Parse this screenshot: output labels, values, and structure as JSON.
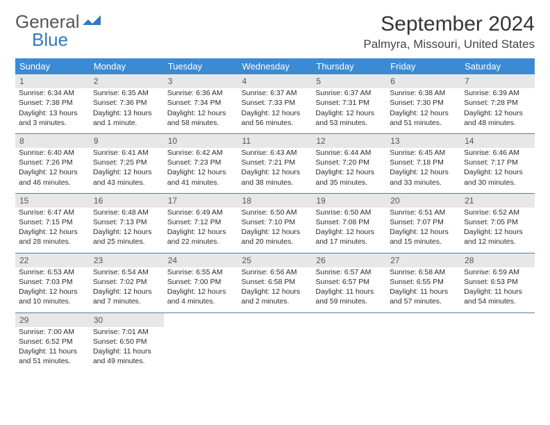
{
  "logo": {
    "text_general": "General",
    "text_blue": "Blue"
  },
  "title": "September 2024",
  "location": "Palmyra, Missouri, United States",
  "colors": {
    "header_bg": "#3b8bd4",
    "header_text": "#ffffff",
    "daynum_bg": "#e7e7e7",
    "daynum_text": "#555555",
    "cell_text": "#2a2a2a",
    "divider": "#5b7a99",
    "logo_gray": "#555555",
    "logo_blue": "#2f79c2",
    "page_bg": "#ffffff"
  },
  "typography": {
    "title_fontsize": 30,
    "location_fontsize": 17,
    "header_fontsize": 13,
    "daynum_fontsize": 12,
    "cell_fontsize": 10.5,
    "logo_fontsize": 26
  },
  "day_headers": [
    "Sunday",
    "Monday",
    "Tuesday",
    "Wednesday",
    "Thursday",
    "Friday",
    "Saturday"
  ],
  "weeks": [
    [
      {
        "n": "1",
        "sr": "Sunrise: 6:34 AM",
        "ss": "Sunset: 7:38 PM",
        "dl": "Daylight: 13 hours and 3 minutes."
      },
      {
        "n": "2",
        "sr": "Sunrise: 6:35 AM",
        "ss": "Sunset: 7:36 PM",
        "dl": "Daylight: 13 hours and 1 minute."
      },
      {
        "n": "3",
        "sr": "Sunrise: 6:36 AM",
        "ss": "Sunset: 7:34 PM",
        "dl": "Daylight: 12 hours and 58 minutes."
      },
      {
        "n": "4",
        "sr": "Sunrise: 6:37 AM",
        "ss": "Sunset: 7:33 PM",
        "dl": "Daylight: 12 hours and 56 minutes."
      },
      {
        "n": "5",
        "sr": "Sunrise: 6:37 AM",
        "ss": "Sunset: 7:31 PM",
        "dl": "Daylight: 12 hours and 53 minutes."
      },
      {
        "n": "6",
        "sr": "Sunrise: 6:38 AM",
        "ss": "Sunset: 7:30 PM",
        "dl": "Daylight: 12 hours and 51 minutes."
      },
      {
        "n": "7",
        "sr": "Sunrise: 6:39 AM",
        "ss": "Sunset: 7:28 PM",
        "dl": "Daylight: 12 hours and 48 minutes."
      }
    ],
    [
      {
        "n": "8",
        "sr": "Sunrise: 6:40 AM",
        "ss": "Sunset: 7:26 PM",
        "dl": "Daylight: 12 hours and 46 minutes."
      },
      {
        "n": "9",
        "sr": "Sunrise: 6:41 AM",
        "ss": "Sunset: 7:25 PM",
        "dl": "Daylight: 12 hours and 43 minutes."
      },
      {
        "n": "10",
        "sr": "Sunrise: 6:42 AM",
        "ss": "Sunset: 7:23 PM",
        "dl": "Daylight: 12 hours and 41 minutes."
      },
      {
        "n": "11",
        "sr": "Sunrise: 6:43 AM",
        "ss": "Sunset: 7:21 PM",
        "dl": "Daylight: 12 hours and 38 minutes."
      },
      {
        "n": "12",
        "sr": "Sunrise: 6:44 AM",
        "ss": "Sunset: 7:20 PM",
        "dl": "Daylight: 12 hours and 35 minutes."
      },
      {
        "n": "13",
        "sr": "Sunrise: 6:45 AM",
        "ss": "Sunset: 7:18 PM",
        "dl": "Daylight: 12 hours and 33 minutes."
      },
      {
        "n": "14",
        "sr": "Sunrise: 6:46 AM",
        "ss": "Sunset: 7:17 PM",
        "dl": "Daylight: 12 hours and 30 minutes."
      }
    ],
    [
      {
        "n": "15",
        "sr": "Sunrise: 6:47 AM",
        "ss": "Sunset: 7:15 PM",
        "dl": "Daylight: 12 hours and 28 minutes."
      },
      {
        "n": "16",
        "sr": "Sunrise: 6:48 AM",
        "ss": "Sunset: 7:13 PM",
        "dl": "Daylight: 12 hours and 25 minutes."
      },
      {
        "n": "17",
        "sr": "Sunrise: 6:49 AM",
        "ss": "Sunset: 7:12 PM",
        "dl": "Daylight: 12 hours and 22 minutes."
      },
      {
        "n": "18",
        "sr": "Sunrise: 6:50 AM",
        "ss": "Sunset: 7:10 PM",
        "dl": "Daylight: 12 hours and 20 minutes."
      },
      {
        "n": "19",
        "sr": "Sunrise: 6:50 AM",
        "ss": "Sunset: 7:08 PM",
        "dl": "Daylight: 12 hours and 17 minutes."
      },
      {
        "n": "20",
        "sr": "Sunrise: 6:51 AM",
        "ss": "Sunset: 7:07 PM",
        "dl": "Daylight: 12 hours and 15 minutes."
      },
      {
        "n": "21",
        "sr": "Sunrise: 6:52 AM",
        "ss": "Sunset: 7:05 PM",
        "dl": "Daylight: 12 hours and 12 minutes."
      }
    ],
    [
      {
        "n": "22",
        "sr": "Sunrise: 6:53 AM",
        "ss": "Sunset: 7:03 PM",
        "dl": "Daylight: 12 hours and 10 minutes."
      },
      {
        "n": "23",
        "sr": "Sunrise: 6:54 AM",
        "ss": "Sunset: 7:02 PM",
        "dl": "Daylight: 12 hours and 7 minutes."
      },
      {
        "n": "24",
        "sr": "Sunrise: 6:55 AM",
        "ss": "Sunset: 7:00 PM",
        "dl": "Daylight: 12 hours and 4 minutes."
      },
      {
        "n": "25",
        "sr": "Sunrise: 6:56 AM",
        "ss": "Sunset: 6:58 PM",
        "dl": "Daylight: 12 hours and 2 minutes."
      },
      {
        "n": "26",
        "sr": "Sunrise: 6:57 AM",
        "ss": "Sunset: 6:57 PM",
        "dl": "Daylight: 11 hours and 59 minutes."
      },
      {
        "n": "27",
        "sr": "Sunrise: 6:58 AM",
        "ss": "Sunset: 6:55 PM",
        "dl": "Daylight: 11 hours and 57 minutes."
      },
      {
        "n": "28",
        "sr": "Sunrise: 6:59 AM",
        "ss": "Sunset: 6:53 PM",
        "dl": "Daylight: 11 hours and 54 minutes."
      }
    ],
    [
      {
        "n": "29",
        "sr": "Sunrise: 7:00 AM",
        "ss": "Sunset: 6:52 PM",
        "dl": "Daylight: 11 hours and 51 minutes."
      },
      {
        "n": "30",
        "sr": "Sunrise: 7:01 AM",
        "ss": "Sunset: 6:50 PM",
        "dl": "Daylight: 11 hours and 49 minutes."
      },
      null,
      null,
      null,
      null,
      null
    ]
  ]
}
